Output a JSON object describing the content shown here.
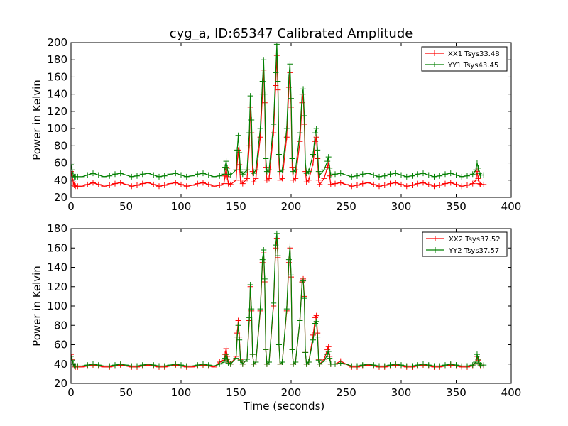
{
  "title": "cyg_a, ID:65347 Calibrated Amplitude",
  "colors": {
    "xx": "#ff0000",
    "yy": "#007f00"
  },
  "chart_data": [
    {
      "type": "line",
      "ylabel": "Power in Kelvin",
      "xlabel": "",
      "xlim": [
        0,
        400
      ],
      "ylim": [
        20,
        200
      ],
      "xticks": [
        0,
        50,
        100,
        150,
        200,
        250,
        300,
        350,
        400
      ],
      "yticks": [
        20,
        40,
        60,
        80,
        100,
        120,
        140,
        160,
        180,
        200
      ],
      "legend_position": "top-right",
      "series": [
        {
          "name": "XX1 Tsys33.48",
          "color": "#ff0000",
          "x": [
            0,
            1,
            2,
            3,
            4,
            6,
            10,
            15,
            20,
            25,
            30,
            35,
            40,
            45,
            50,
            55,
            60,
            65,
            70,
            75,
            80,
            85,
            90,
            95,
            100,
            105,
            110,
            115,
            120,
            125,
            130,
            135,
            139,
            140,
            141,
            142,
            143,
            145,
            150,
            151,
            152,
            153,
            154,
            156,
            160,
            162,
            163,
            164,
            165,
            166,
            168,
            172,
            174,
            175,
            176,
            177,
            178,
            180,
            184,
            186,
            187,
            188,
            189,
            190,
            192,
            196,
            198,
            199,
            200,
            201,
            202,
            204,
            208,
            210,
            211,
            212,
            213,
            214,
            216,
            220,
            222,
            223,
            224,
            225,
            226,
            230,
            233,
            234,
            235,
            236,
            240,
            245,
            250,
            255,
            260,
            265,
            270,
            275,
            280,
            285,
            290,
            295,
            300,
            305,
            310,
            315,
            320,
            325,
            330,
            335,
            340,
            345,
            350,
            355,
            360,
            365,
            368,
            369,
            370,
            371,
            372,
            375
          ],
          "y": [
            50,
            45,
            38,
            34,
            33,
            33,
            33,
            35,
            37,
            35,
            33,
            34,
            36,
            37,
            35,
            33,
            34,
            36,
            37,
            35,
            33,
            34,
            36,
            37,
            35,
            33,
            34,
            36,
            37,
            35,
            33,
            34,
            36,
            45,
            55,
            44,
            36,
            35,
            40,
            60,
            75,
            58,
            40,
            36,
            42,
            80,
            125,
            95,
            50,
            38,
            42,
            90,
            140,
            168,
            130,
            55,
            40,
            42,
            95,
            150,
            185,
            145,
            60,
            40,
            42,
            90,
            148,
            165,
            125,
            55,
            40,
            42,
            85,
            130,
            140,
            105,
            50,
            38,
            40,
            60,
            85,
            90,
            65,
            40,
            35,
            42,
            55,
            60,
            45,
            35,
            36,
            37,
            35,
            33,
            34,
            36,
            37,
            35,
            33,
            34,
            36,
            37,
            35,
            33,
            34,
            36,
            37,
            35,
            33,
            34,
            36,
            37,
            35,
            33,
            34,
            36,
            40,
            50,
            42,
            36,
            35,
            35
          ]
        },
        {
          "name": "YY1 Tsys43.45",
          "color": "#007f00",
          "x": [
            0,
            1,
            2,
            3,
            4,
            6,
            10,
            15,
            20,
            25,
            30,
            35,
            40,
            45,
            50,
            55,
            60,
            65,
            70,
            75,
            80,
            85,
            90,
            95,
            100,
            105,
            110,
            115,
            120,
            125,
            130,
            135,
            139,
            140,
            141,
            142,
            143,
            145,
            150,
            151,
            152,
            153,
            154,
            156,
            160,
            162,
            163,
            164,
            165,
            166,
            168,
            172,
            174,
            175,
            176,
            177,
            178,
            180,
            184,
            186,
            187,
            188,
            189,
            190,
            192,
            196,
            198,
            199,
            200,
            201,
            202,
            204,
            208,
            210,
            211,
            212,
            213,
            214,
            216,
            220,
            222,
            223,
            224,
            225,
            226,
            230,
            233,
            234,
            235,
            236,
            240,
            245,
            250,
            255,
            260,
            265,
            270,
            275,
            280,
            285,
            290,
            295,
            300,
            305,
            310,
            315,
            320,
            325,
            330,
            335,
            340,
            345,
            350,
            355,
            360,
            365,
            368,
            369,
            370,
            371,
            372,
            375
          ],
          "y": [
            58,
            52,
            46,
            44,
            44,
            44,
            44,
            46,
            48,
            46,
            44,
            45,
            47,
            48,
            46,
            44,
            45,
            47,
            48,
            46,
            44,
            45,
            47,
            48,
            46,
            44,
            45,
            47,
            48,
            46,
            44,
            45,
            47,
            55,
            62,
            54,
            47,
            46,
            52,
            75,
            92,
            72,
            52,
            47,
            52,
            95,
            138,
            110,
            60,
            48,
            52,
            100,
            155,
            180,
            140,
            65,
            50,
            52,
            105,
            165,
            198,
            155,
            70,
            50,
            52,
            100,
            160,
            175,
            135,
            65,
            50,
            52,
            95,
            140,
            146,
            115,
            60,
            48,
            50,
            70,
            95,
            100,
            75,
            50,
            46,
            52,
            62,
            67,
            54,
            46,
            47,
            48,
            46,
            44,
            45,
            47,
            48,
            46,
            44,
            45,
            47,
            48,
            46,
            44,
            45,
            47,
            48,
            46,
            44,
            45,
            47,
            48,
            46,
            44,
            45,
            47,
            52,
            60,
            54,
            48,
            46,
            46
          ]
        }
      ]
    },
    {
      "type": "line",
      "ylabel": "Power in Kelvin",
      "xlabel": "Time (seconds)",
      "xlim": [
        0,
        400
      ],
      "ylim": [
        20,
        180
      ],
      "xticks": [
        0,
        50,
        100,
        150,
        200,
        250,
        300,
        350,
        400
      ],
      "yticks": [
        20,
        40,
        60,
        80,
        100,
        120,
        140,
        160,
        180
      ],
      "legend_position": "top-right",
      "series": [
        {
          "name": "XX2 Tsys37.52",
          "color": "#ff0000",
          "x": [
            0,
            1,
            2,
            3,
            4,
            6,
            10,
            15,
            20,
            25,
            30,
            35,
            40,
            45,
            50,
            55,
            60,
            65,
            70,
            75,
            80,
            85,
            90,
            95,
            100,
            105,
            110,
            115,
            120,
            125,
            130,
            135,
            139,
            140,
            141,
            142,
            143,
            145,
            150,
            151,
            152,
            153,
            154,
            156,
            160,
            162,
            163,
            164,
            165,
            166,
            168,
            172,
            174,
            175,
            176,
            177,
            178,
            180,
            184,
            186,
            187,
            188,
            189,
            190,
            192,
            196,
            198,
            199,
            200,
            201,
            202,
            204,
            208,
            210,
            211,
            212,
            213,
            214,
            216,
            220,
            222,
            223,
            224,
            225,
            226,
            230,
            233,
            234,
            235,
            236,
            240,
            245,
            250,
            255,
            260,
            265,
            270,
            275,
            280,
            285,
            290,
            295,
            300,
            305,
            310,
            315,
            320,
            325,
            330,
            335,
            340,
            345,
            350,
            355,
            360,
            365,
            368,
            369,
            370,
            371,
            372,
            375
          ],
          "y": [
            50,
            45,
            40,
            38,
            37,
            37,
            37,
            38,
            39,
            38,
            37,
            37,
            38,
            39,
            38,
            37,
            37,
            38,
            39,
            38,
            37,
            37,
            38,
            39,
            38,
            37,
            37,
            38,
            39,
            38,
            37,
            42,
            44,
            50,
            56,
            48,
            42,
            40,
            48,
            72,
            85,
            68,
            45,
            40,
            45,
            85,
            120,
            95,
            50,
            40,
            42,
            95,
            145,
            155,
            125,
            55,
            40,
            42,
            100,
            160,
            170,
            150,
            60,
            40,
            42,
            95,
            145,
            160,
            130,
            55,
            40,
            42,
            85,
            125,
            128,
            110,
            52,
            40,
            42,
            70,
            88,
            90,
            72,
            45,
            40,
            45,
            55,
            58,
            48,
            40,
            40,
            43,
            40,
            37,
            37,
            38,
            39,
            38,
            37,
            37,
            38,
            39,
            38,
            37,
            37,
            38,
            39,
            38,
            37,
            37,
            38,
            39,
            38,
            37,
            37,
            38,
            42,
            48,
            44,
            40,
            38,
            38
          ]
        },
        {
          "name": "YY2 Tsys37.57",
          "color": "#007f00",
          "x": [
            0,
            1,
            2,
            3,
            4,
            6,
            10,
            15,
            20,
            25,
            30,
            35,
            40,
            45,
            50,
            55,
            60,
            65,
            70,
            75,
            80,
            85,
            90,
            95,
            100,
            105,
            110,
            115,
            120,
            125,
            130,
            135,
            139,
            140,
            141,
            142,
            143,
            145,
            150,
            151,
            152,
            153,
            154,
            156,
            160,
            162,
            163,
            164,
            165,
            166,
            168,
            172,
            174,
            175,
            176,
            177,
            178,
            180,
            184,
            186,
            187,
            188,
            189,
            190,
            192,
            196,
            198,
            199,
            200,
            201,
            202,
            204,
            208,
            210,
            211,
            212,
            213,
            214,
            216,
            220,
            222,
            223,
            224,
            225,
            226,
            230,
            233,
            234,
            235,
            236,
            240,
            245,
            250,
            255,
            260,
            265,
            270,
            275,
            280,
            285,
            290,
            295,
            300,
            305,
            310,
            315,
            320,
            325,
            330,
            335,
            340,
            345,
            350,
            355,
            360,
            365,
            368,
            369,
            370,
            371,
            372,
            375
          ],
          "y": [
            48,
            44,
            40,
            38,
            38,
            38,
            38,
            39,
            40,
            39,
            38,
            38,
            39,
            40,
            39,
            38,
            38,
            39,
            40,
            39,
            38,
            38,
            39,
            40,
            39,
            38,
            38,
            39,
            40,
            39,
            38,
            40,
            42,
            46,
            50,
            45,
            41,
            40,
            46,
            68,
            80,
            65,
            44,
            40,
            45,
            88,
            122,
            97,
            50,
            40,
            42,
            97,
            148,
            158,
            128,
            55,
            40,
            42,
            103,
            163,
            175,
            152,
            60,
            40,
            42,
            97,
            148,
            162,
            132,
            55,
            40,
            42,
            85,
            124,
            126,
            108,
            52,
            40,
            42,
            65,
            82,
            84,
            68,
            44,
            40,
            43,
            50,
            53,
            46,
            40,
            40,
            41,
            40,
            38,
            38,
            39,
            40,
            39,
            38,
            38,
            39,
            40,
            39,
            38,
            38,
            39,
            40,
            39,
            38,
            38,
            39,
            40,
            39,
            38,
            38,
            39,
            42,
            50,
            45,
            41,
            39,
            39
          ]
        }
      ]
    }
  ]
}
